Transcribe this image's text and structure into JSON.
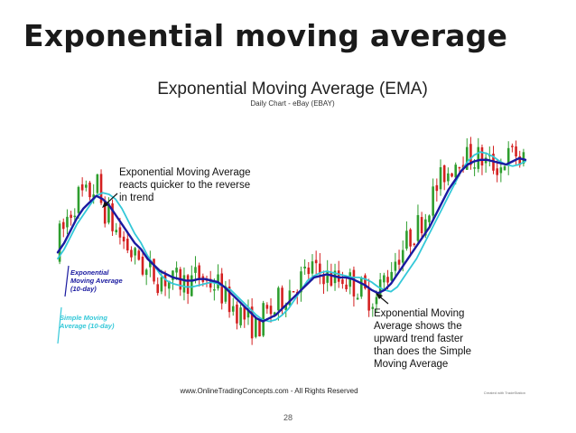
{
  "slide": {
    "title": "Exponential moving average",
    "page_number": "28"
  },
  "chart_data": {
    "type": "line",
    "title": "Exponential Moving Average (EMA)",
    "subtitle": "Daily Chart - eBay (EBAY)",
    "footer": "www.OnlineTradingConcepts.com - All Rights Reserved",
    "credit": "Created with TradeStation",
    "xlabel": "",
    "ylabel": "",
    "grid": false,
    "candlesticks_shown": true,
    "candle_colors": {
      "up": "#2e9e2e",
      "down": "#d42020"
    },
    "series": [
      {
        "name": "Exponential Moving Average (10-day)",
        "color": "#1a1aa0",
        "values": [
          80,
          83,
          87,
          91,
          94,
          96,
          98,
          97,
          95,
          92,
          89,
          86,
          83,
          81,
          78,
          76,
          74,
          73,
          72,
          71.5,
          71,
          71,
          71.5,
          71.5,
          71,
          70.5,
          69,
          67,
          65,
          63,
          61,
          59,
          58,
          59,
          60,
          62,
          64,
          66,
          68,
          70,
          72,
          72.5,
          73,
          72.5,
          72,
          72,
          71.5,
          70.5,
          69.5,
          68,
          67,
          68,
          70,
          73,
          76,
          79,
          82,
          85,
          88,
          92,
          96,
          100,
          103,
          106,
          108,
          109,
          109.5,
          109.5,
          109,
          108.5,
          108,
          109,
          110,
          109.5
        ]
      },
      {
        "name": "Simple Moving Average (10-day)",
        "color": "#33c8d8",
        "values": [
          78,
          81,
          85,
          89,
          92,
          95,
          98,
          99,
          98.5,
          97,
          94,
          90,
          86,
          83,
          79,
          76,
          73,
          71,
          70,
          69.5,
          69,
          69,
          69.5,
          70,
          70.5,
          70,
          69,
          68,
          66,
          64,
          62,
          60,
          58.5,
          58,
          58.5,
          60,
          62,
          65,
          68,
          71,
          72.5,
          73.5,
          74,
          73.5,
          73,
          72.5,
          72,
          72,
          71.5,
          70.5,
          69,
          68,
          67.5,
          69,
          72,
          75,
          78,
          82,
          86,
          90,
          94,
          98,
          102,
          106,
          109,
          111,
          112,
          111.5,
          110.5,
          109,
          108,
          107.5,
          108,
          109
        ]
      }
    ],
    "annotations": [
      {
        "lines": [
          "Exponential Moving Average",
          "reacts quicker to the reverse",
          "in trend"
        ],
        "color": "#111111"
      },
      {
        "lines": [
          "Exponential Moving",
          "Average shows the",
          "upward trend faster",
          "than does the Simple",
          "Moving Average"
        ],
        "color": "#111111"
      },
      {
        "lines": [
          "Exponential",
          "Moving Average",
          "(10-day)"
        ],
        "color": "#1a1aa0"
      },
      {
        "lines": [
          "Simple Moving",
          "Average (10-day)"
        ],
        "color": "#33c8d8"
      }
    ]
  }
}
